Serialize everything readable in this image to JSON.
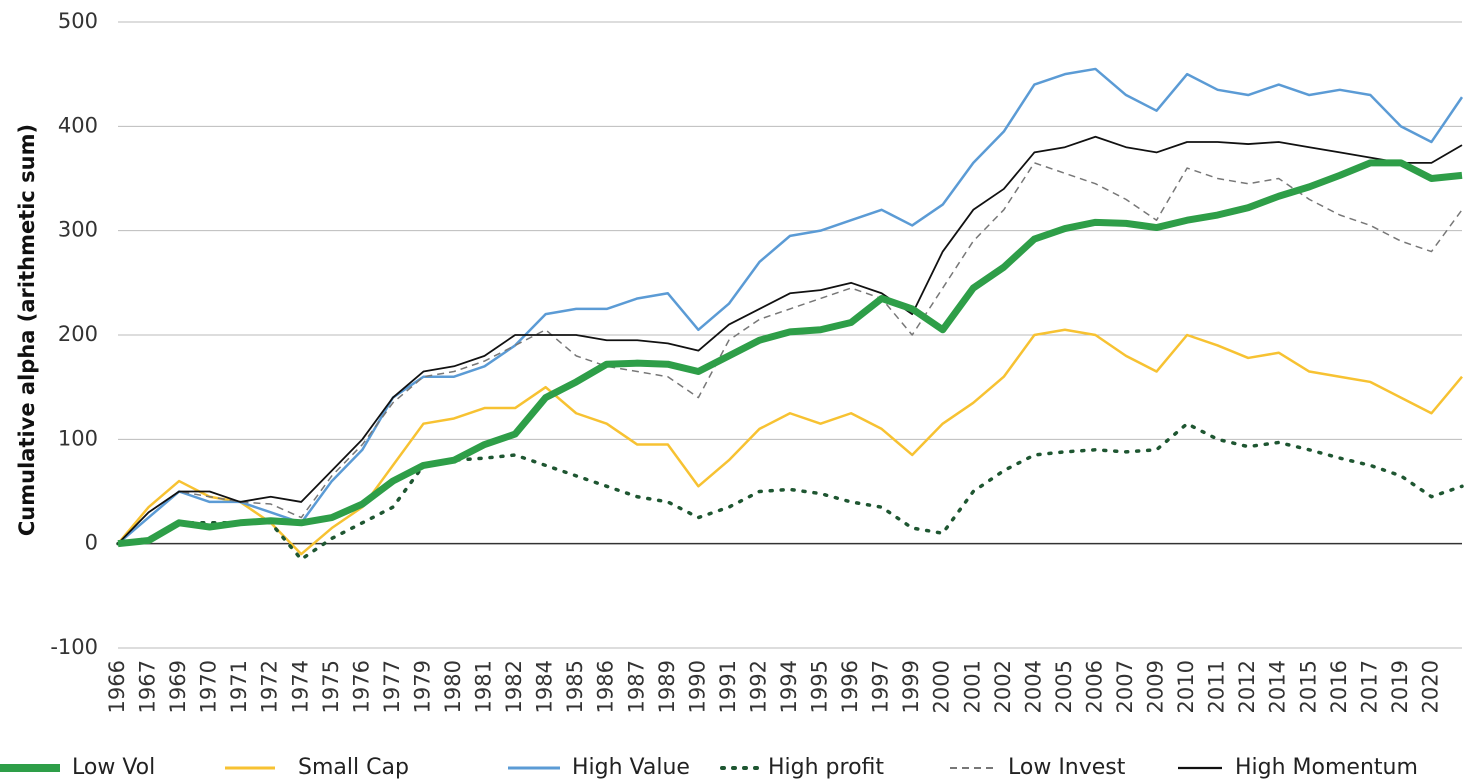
{
  "chart_data": {
    "type": "line",
    "y_label": "Cumulative alpha (arithmetic sum)",
    "categories": [
      "1966",
      "1967",
      "1969",
      "1970",
      "1971",
      "1972",
      "1974",
      "1975",
      "1976",
      "1977",
      "1979",
      "1980",
      "1981",
      "1982",
      "1984",
      "1985",
      "1986",
      "1987",
      "1989",
      "1990",
      "1991",
      "1992",
      "1994",
      "1995",
      "1996",
      "1997",
      "1999",
      "2000",
      "2001",
      "2002",
      "2004",
      "2005",
      "2006",
      "2007",
      "2009",
      "2010",
      "2011",
      "2012",
      "2014",
      "2015",
      "2016",
      "2017",
      "2019",
      "2020",
      null
    ],
    "ylim": [
      -100,
      500
    ],
    "yticks": [
      -100,
      0,
      100,
      200,
      300,
      400,
      500
    ],
    "grid": true,
    "legend": "bottom",
    "series": [
      {
        "name": "Low Vol",
        "color": "#2e9e48",
        "line_style": "solid",
        "values": [
          0,
          3,
          20,
          16,
          20,
          22,
          20,
          25,
          38,
          60,
          75,
          80,
          95,
          105,
          140,
          155,
          172,
          173,
          172,
          165,
          180,
          195,
          203,
          205,
          212,
          235,
          225,
          205,
          245,
          265,
          292,
          302,
          308,
          307,
          303,
          310,
          315,
          322,
          333,
          342,
          353,
          365,
          365,
          350,
          353
        ]
      },
      {
        "name": "Small Cap",
        "color": "#f7c232",
        "line_style": "solid",
        "values": [
          0,
          35,
          60,
          45,
          40,
          20,
          -10,
          15,
          35,
          75,
          115,
          120,
          130,
          130,
          150,
          125,
          115,
          95,
          95,
          55,
          80,
          110,
          125,
          115,
          125,
          110,
          85,
          115,
          135,
          160,
          200,
          205,
          200,
          180,
          165,
          200,
          190,
          178,
          183,
          165,
          160,
          155,
          140,
          125,
          160
        ]
      },
      {
        "name": "High Value",
        "color": "#5b9bd5",
        "line_style": "solid",
        "values": [
          0,
          25,
          50,
          40,
          40,
          30,
          20,
          60,
          90,
          140,
          160,
          160,
          170,
          190,
          220,
          225,
          225,
          235,
          240,
          205,
          230,
          270,
          295,
          300,
          310,
          320,
          305,
          325,
          365,
          395,
          440,
          450,
          455,
          430,
          415,
          450,
          435,
          430,
          440,
          430,
          435,
          430,
          400,
          385,
          428
        ]
      },
      {
        "name": "High profit",
        "color": "#1e5631",
        "line_style": "dotted",
        "values": [
          0,
          5,
          20,
          20,
          20,
          20,
          -15,
          5,
          20,
          35,
          75,
          80,
          82,
          85,
          75,
          65,
          55,
          45,
          40,
          25,
          35,
          50,
          52,
          48,
          40,
          35,
          15,
          10,
          50,
          70,
          85,
          88,
          90,
          88,
          90,
          115,
          100,
          93,
          97,
          90,
          82,
          75,
          65,
          45,
          55
        ]
      },
      {
        "name": "Low Invest",
        "color": "#777777",
        "line_style": "dashed",
        "values": [
          0,
          30,
          50,
          45,
          40,
          38,
          25,
          65,
          95,
          135,
          160,
          165,
          175,
          190,
          205,
          180,
          170,
          165,
          160,
          140,
          195,
          215,
          225,
          235,
          245,
          235,
          200,
          245,
          290,
          320,
          365,
          355,
          345,
          330,
          310,
          360,
          350,
          345,
          350,
          330,
          315,
          305,
          290,
          280,
          320
        ]
      },
      {
        "name": "High Momentum",
        "color": "#111111",
        "line_style": "solid",
        "values": [
          0,
          30,
          50,
          50,
          40,
          45,
          40,
          70,
          100,
          140,
          165,
          170,
          180,
          200,
          200,
          200,
          195,
          195,
          192,
          185,
          210,
          225,
          240,
          243,
          250,
          240,
          220,
          280,
          320,
          340,
          375,
          380,
          390,
          380,
          375,
          385,
          385,
          383,
          385,
          380,
          375,
          370,
          365,
          365,
          382
        ]
      }
    ]
  }
}
